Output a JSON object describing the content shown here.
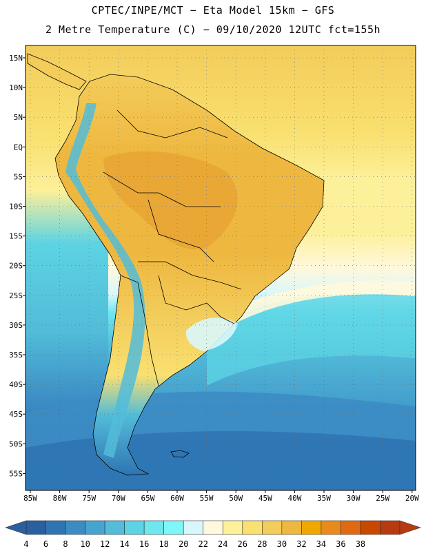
{
  "titles": {
    "line1": "CPTEC/INPE/MCT −  Eta Model 15km − GFS",
    "line2": "2 Metre Temperature (C) − 09/10/2020 12UTC fct=155h"
  },
  "lat_ticks": [
    "15N",
    "10N",
    "5N",
    "EQ",
    "5S",
    "10S",
    "15S",
    "20S",
    "25S",
    "30S",
    "35S",
    "40S",
    "45S",
    "50S",
    "55S"
  ],
  "lon_ticks": [
    "85W",
    "80W",
    "75W",
    "70W",
    "65W",
    "60W",
    "55W",
    "50W",
    "45W",
    "40W",
    "35W",
    "30W",
    "25W",
    "20W"
  ],
  "colorbar": {
    "labels": [
      "4",
      "6",
      "8",
      "10",
      "12",
      "14",
      "16",
      "18",
      "20",
      "22",
      "24",
      "26",
      "28",
      "30",
      "32",
      "34",
      "36",
      "38"
    ],
    "colors": [
      "#2a5fa0",
      "#2f74b3",
      "#3c8cc4",
      "#47a4cf",
      "#52bcd9",
      "#5dd3e3",
      "#6fe7ef",
      "#7ff6f8",
      "#d9f7fb",
      "#fff8dc",
      "#fdf09a",
      "#f9e070",
      "#f3cc5a",
      "#eeb840",
      "#f0a800",
      "#e88a1e",
      "#e06a10",
      "#c84800",
      "#b83a10"
    ]
  },
  "map": {
    "region": "South America",
    "lat_range": [
      -58,
      17
    ],
    "lon_range": [
      -86,
      -20
    ]
  }
}
